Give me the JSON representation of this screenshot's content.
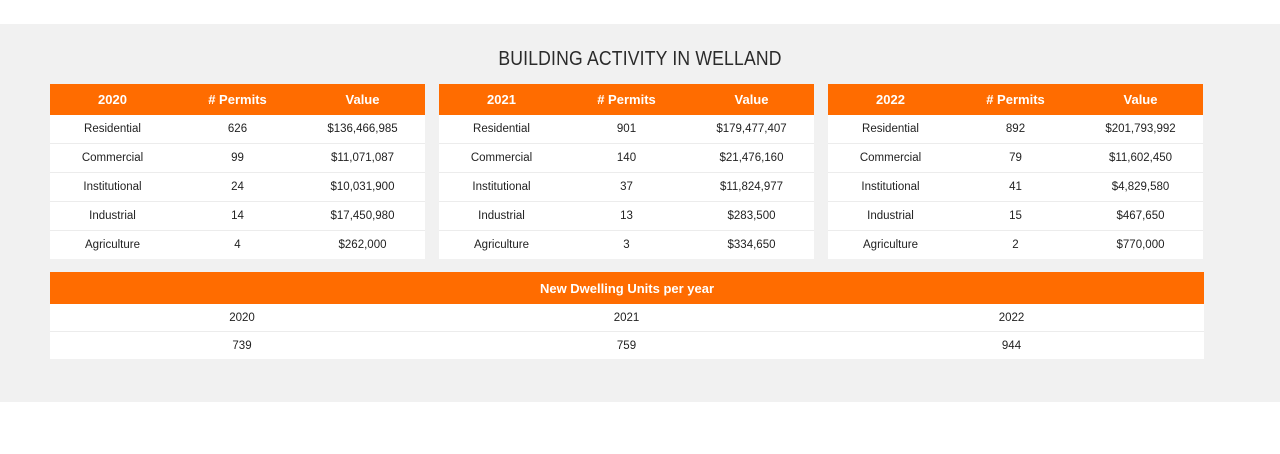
{
  "title": "BUILDING ACTIVITY IN WELLAND",
  "colors": {
    "accent": "#ff6c00",
    "band_background": "#f1f1f1",
    "text": "#222222"
  },
  "year_tables": [
    {
      "year": "2020",
      "permits_header": "# Permits",
      "value_header": "Value",
      "rows": [
        {
          "category": "Residential",
          "permits": "626",
          "value": "$136,466,985"
        },
        {
          "category": "Commercial",
          "permits": "99",
          "value": "$11,071,087"
        },
        {
          "category": "Institutional",
          "permits": "24",
          "value": "$10,031,900"
        },
        {
          "category": "Industrial",
          "permits": "14",
          "value": "$17,450,980"
        },
        {
          "category": "Agriculture",
          "permits": "4",
          "value": "$262,000"
        }
      ]
    },
    {
      "year": "2021",
      "permits_header": "# Permits",
      "value_header": "Value",
      "rows": [
        {
          "category": "Residential",
          "permits": "901",
          "value": "$179,477,407"
        },
        {
          "category": "Commercial",
          "permits": "140",
          "value": "$21,476,160"
        },
        {
          "category": "Institutional",
          "permits": "37",
          "value": "$11,824,977"
        },
        {
          "category": "Industrial",
          "permits": "13",
          "value": "$283,500"
        },
        {
          "category": "Agriculture",
          "permits": "3",
          "value": "$334,650"
        }
      ]
    },
    {
      "year": "2022",
      "permits_header": "# Permits",
      "value_header": "Value",
      "rows": [
        {
          "category": "Residential",
          "permits": "892",
          "value": "$201,793,992"
        },
        {
          "category": "Commercial",
          "permits": "79",
          "value": "$11,602,450"
        },
        {
          "category": "Institutional",
          "permits": "41",
          "value": "$4,829,580"
        },
        {
          "category": "Industrial",
          "permits": "15",
          "value": "$467,650"
        },
        {
          "category": "Agriculture",
          "permits": "2",
          "value": "$770,000"
        }
      ]
    }
  ],
  "dwelling": {
    "header": "New Dwelling Units per year",
    "years": [
      "2020",
      "2021",
      "2022"
    ],
    "units": [
      "739",
      "759",
      "944"
    ]
  }
}
